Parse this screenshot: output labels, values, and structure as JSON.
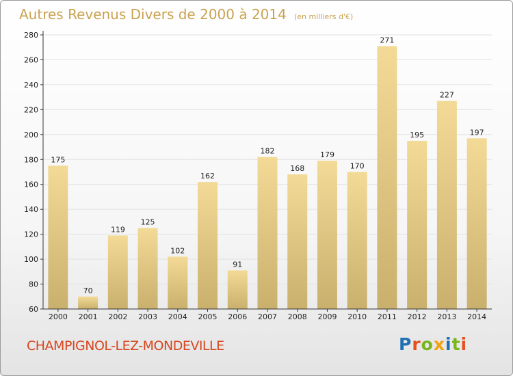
{
  "header": {
    "title": "Autres Revenus Divers de 2000 à 2014",
    "subtitle": "(en milliers d'€)"
  },
  "footer": {
    "commune": "CHAMPIGNOL-LEZ-MONDEVILLE",
    "brand": "Proxiti"
  },
  "colors": {
    "title": "#c9a24f",
    "commune": "#d7461f",
    "bar_light": "#f3da97",
    "bar_dark": "#c9b06d",
    "grid": "#e2e2e2",
    "axis": "#333333",
    "brand_letters": [
      "#1f6fb5",
      "#e6501c",
      "#7ab51d",
      "#f2a20d",
      "#1f6fb5",
      "#7ab51d",
      "#e6501c"
    ]
  },
  "chart_data": {
    "type": "bar",
    "categories": [
      "2000",
      "2001",
      "2002",
      "2003",
      "2004",
      "2005",
      "2006",
      "2007",
      "2008",
      "2009",
      "2010",
      "2011",
      "2012",
      "2013",
      "2014"
    ],
    "values": [
      175,
      70,
      119,
      125,
      102,
      162,
      91,
      182,
      168,
      179,
      170,
      271,
      195,
      227,
      197
    ],
    "ylim": [
      60,
      280
    ],
    "yticks": [
      60,
      80,
      100,
      120,
      140,
      160,
      180,
      200,
      220,
      240,
      260,
      280
    ],
    "title": "Autres Revenus Divers de 2000 à 2014",
    "xlabel": "",
    "ylabel": "",
    "grid": true
  }
}
